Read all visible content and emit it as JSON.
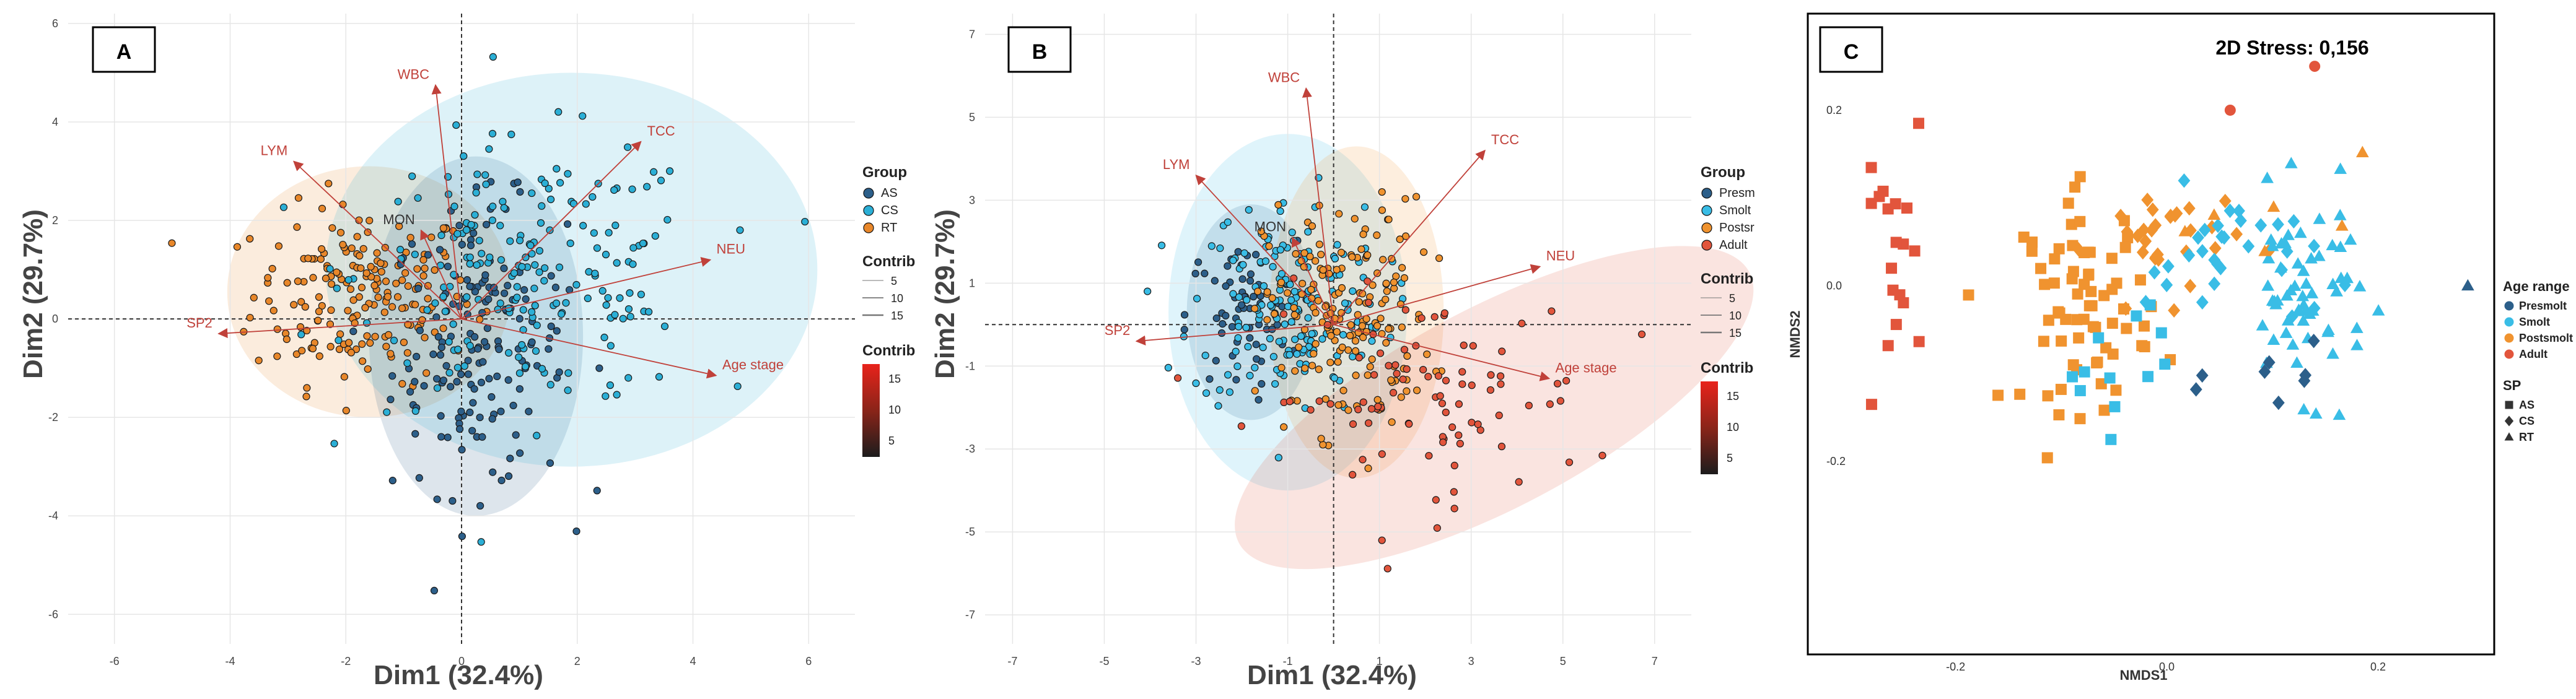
{
  "colors": {
    "AS": "#2c5f8a",
    "CS": "#2bafd6",
    "RT": "#e8872a",
    "Presmolt": "#2c5f8a",
    "Smolt": "#39bde6",
    "Postsmolt": "#f0932f",
    "Adult": "#e2553c",
    "arrow": "#c0413a",
    "grid": "#e6e6e6"
  },
  "chart_data": [
    {
      "type": "scatter",
      "panel_label": "A",
      "xlabel": "Dim1 (32.4%)",
      "ylabel": "Dim2 (29.7%)",
      "xlim": [
        -6.8,
        6.8
      ],
      "ylim": [
        -6.6,
        6.2
      ],
      "xticks": [
        -6,
        -4,
        -2,
        0,
        2,
        4,
        6
      ],
      "yticks": [
        -6,
        -4,
        -2,
        0,
        2,
        4,
        6
      ],
      "legend": {
        "group_title": "Group",
        "groups": [
          "AS",
          "CS",
          "RT"
        ],
        "contrib_title": "Contrib",
        "contrib_levels": [
          "5",
          "10",
          "15"
        ],
        "colorbar_title": "Contrib",
        "colorbar_ticks": [
          "15",
          "10",
          "5"
        ]
      },
      "vectors": [
        {
          "label": "WBC",
          "x": -0.45,
          "y": 4.75
        },
        {
          "label": "LYM",
          "x": -2.9,
          "y": 3.2
        },
        {
          "label": "MON",
          "x": -0.7,
          "y": 1.8
        },
        {
          "label": "TCC",
          "x": 3.1,
          "y": 3.6
        },
        {
          "label": "NEU",
          "x": 4.3,
          "y": 1.2
        },
        {
          "label": "SP2",
          "x": -4.2,
          "y": -0.3
        },
        {
          "label": "Age stage",
          "x": 4.4,
          "y": -1.15
        }
      ],
      "ellipses": [
        {
          "group": "RT",
          "cx": -1.6,
          "cy": 0.55,
          "rx": 2.45,
          "ry": 2.55,
          "angle": 0
        },
        {
          "group": "AS",
          "cx": 0.25,
          "cy": -0.35,
          "rx": 1.85,
          "ry": 3.65,
          "angle": 0
        },
        {
          "group": "CS",
          "cx": 1.9,
          "cy": 1.0,
          "rx": 4.25,
          "ry": 4.0,
          "angle": 0
        }
      ],
      "clusters": [
        {
          "group": "RT",
          "n": 190,
          "cx": -1.7,
          "cy": 0.5,
          "sx": 0.95,
          "sy": 0.9
        },
        {
          "group": "AS",
          "n": 160,
          "cx": 0.3,
          "cy": -0.6,
          "sx": 0.75,
          "sy": 1.45
        },
        {
          "group": "CS",
          "n": 200,
          "cx": 1.2,
          "cy": 0.9,
          "sx": 1.5,
          "sy": 1.35
        }
      ]
    },
    {
      "type": "scatter",
      "panel_label": "B",
      "xlabel": "Dim1 (32.4%)",
      "ylabel": "Dim2 (29.7%)",
      "xlim": [
        -7.6,
        7.8
      ],
      "ylim": [
        -7.7,
        7.5
      ],
      "xticks": [
        -7,
        -5,
        -3,
        -1,
        1,
        3,
        5,
        7
      ],
      "yticks": [
        -7,
        -5,
        -3,
        -1,
        1,
        3,
        5,
        7
      ],
      "legend": {
        "group_title": "Group",
        "groups": [
          "Presm",
          "Smolt",
          "Postsr",
          "Adult"
        ],
        "contrib_title": "Contrib",
        "contrib_levels": [
          "5",
          "10",
          "15"
        ],
        "colorbar_title": "Contrib",
        "colorbar_ticks": [
          "15",
          "10",
          "5"
        ]
      },
      "vectors": [
        {
          "label": "WBC",
          "x": -0.6,
          "y": 5.7
        },
        {
          "label": "LYM",
          "x": -3.0,
          "y": 3.6
        },
        {
          "label": "MON",
          "x": -0.9,
          "y": 2.1
        },
        {
          "label": "TCC",
          "x": 3.3,
          "y": 4.2
        },
        {
          "label": "NEU",
          "x": 4.5,
          "y": 1.4
        },
        {
          "label": "SP2",
          "x": -4.3,
          "y": -0.4
        },
        {
          "label": "Age stage",
          "x": 4.7,
          "y": -1.3
        }
      ],
      "ellipses": [
        {
          "group": "Presmolt",
          "cx": -1.8,
          "cy": 0.3,
          "rx": 1.4,
          "ry": 2.6,
          "angle": 0
        },
        {
          "group": "Smolt",
          "cx": -1.0,
          "cy": 0.3,
          "rx": 2.6,
          "ry": 4.3,
          "angle": 0
        },
        {
          "group": "Postsmolt",
          "cx": 0.5,
          "cy": 0.3,
          "rx": 1.9,
          "ry": 4.0,
          "angle": 0
        },
        {
          "group": "Adult",
          "cx": 3.5,
          "cy": -2.0,
          "rx": 6.3,
          "ry": 2.4,
          "angle": 28
        }
      ],
      "clusters": [
        {
          "group": "Presmolt",
          "n": 60,
          "cx": -2.0,
          "cy": 0.2,
          "sx": 0.6,
          "sy": 0.9
        },
        {
          "group": "Smolt",
          "n": 170,
          "cx": -1.0,
          "cy": 0.5,
          "sx": 1.05,
          "sy": 1.3
        },
        {
          "group": "Postsmolt",
          "n": 180,
          "cx": 0.3,
          "cy": 0.2,
          "sx": 0.9,
          "sy": 1.4
        },
        {
          "group": "Adult",
          "n": 90,
          "cx": 2.0,
          "cy": -1.8,
          "sx": 1.8,
          "sy": 1.3
        }
      ]
    },
    {
      "type": "scatter",
      "panel_label": "C",
      "xlabel": "NMDS1",
      "ylabel": "NMDS2",
      "xlim": [
        -0.34,
        0.31
      ],
      "ylim": [
        -0.42,
        0.31
      ],
      "xticks": [
        -0.2,
        0.0,
        0.2
      ],
      "yticks": [
        -0.2,
        0.0,
        0.2
      ],
      "xtick_labels": [
        "-0.2",
        "0.0",
        "0.2"
      ],
      "ytick_labels": [
        "-0.2",
        "0.0",
        "0.2"
      ],
      "stress_label": "2D Stress: 0,156",
      "legend": {
        "age_title": "Age range",
        "ages": [
          "Presmolt",
          "Smolt",
          "Postsmolt",
          "Adult"
        ],
        "sp_title": "SP",
        "sps": [
          "AS",
          "CS",
          "RT"
        ]
      },
      "clusters": [
        {
          "age": "Adult",
          "shape": "square",
          "n": 18,
          "cx": -0.255,
          "cy": 0.02,
          "sx": 0.018,
          "sy": 0.055
        },
        {
          "age": "Postsmolt",
          "shape": "square",
          "n": 70,
          "cx": -0.075,
          "cy": -0.02,
          "sx": 0.03,
          "sy": 0.06
        },
        {
          "age": "Postsmolt",
          "shape": "diamond",
          "n": 30,
          "cx": 0.0,
          "cy": 0.05,
          "sx": 0.035,
          "sy": 0.035
        },
        {
          "age": "Smolt",
          "shape": "square",
          "n": 12,
          "cx": -0.05,
          "cy": -0.08,
          "sx": 0.03,
          "sy": 0.04
        },
        {
          "age": "Smolt",
          "shape": "diamond",
          "n": 30,
          "cx": 0.06,
          "cy": 0.03,
          "sx": 0.04,
          "sy": 0.04
        },
        {
          "age": "Smolt",
          "shape": "triangle",
          "n": 60,
          "cx": 0.13,
          "cy": -0.01,
          "sx": 0.03,
          "sy": 0.055
        },
        {
          "age": "Presmolt",
          "shape": "diamond",
          "n": 8,
          "cx": 0.12,
          "cy": -0.1,
          "sx": 0.035,
          "sy": 0.03
        },
        {
          "age": "Postsmolt",
          "shape": "triangle",
          "n": 6,
          "cx": 0.12,
          "cy": 0.06,
          "sx": 0.04,
          "sy": 0.04
        }
      ],
      "outliers": [
        {
          "age": "Adult",
          "shape": "circle",
          "x": 0.14,
          "y": 0.25
        },
        {
          "age": "Adult",
          "shape": "circle",
          "x": 0.06,
          "y": 0.2
        },
        {
          "age": "Adult",
          "shape": "square",
          "x": -0.235,
          "y": 0.185
        },
        {
          "age": "Presmolt",
          "shape": "triangle",
          "x": 0.285,
          "y": 0.0
        }
      ]
    }
  ]
}
